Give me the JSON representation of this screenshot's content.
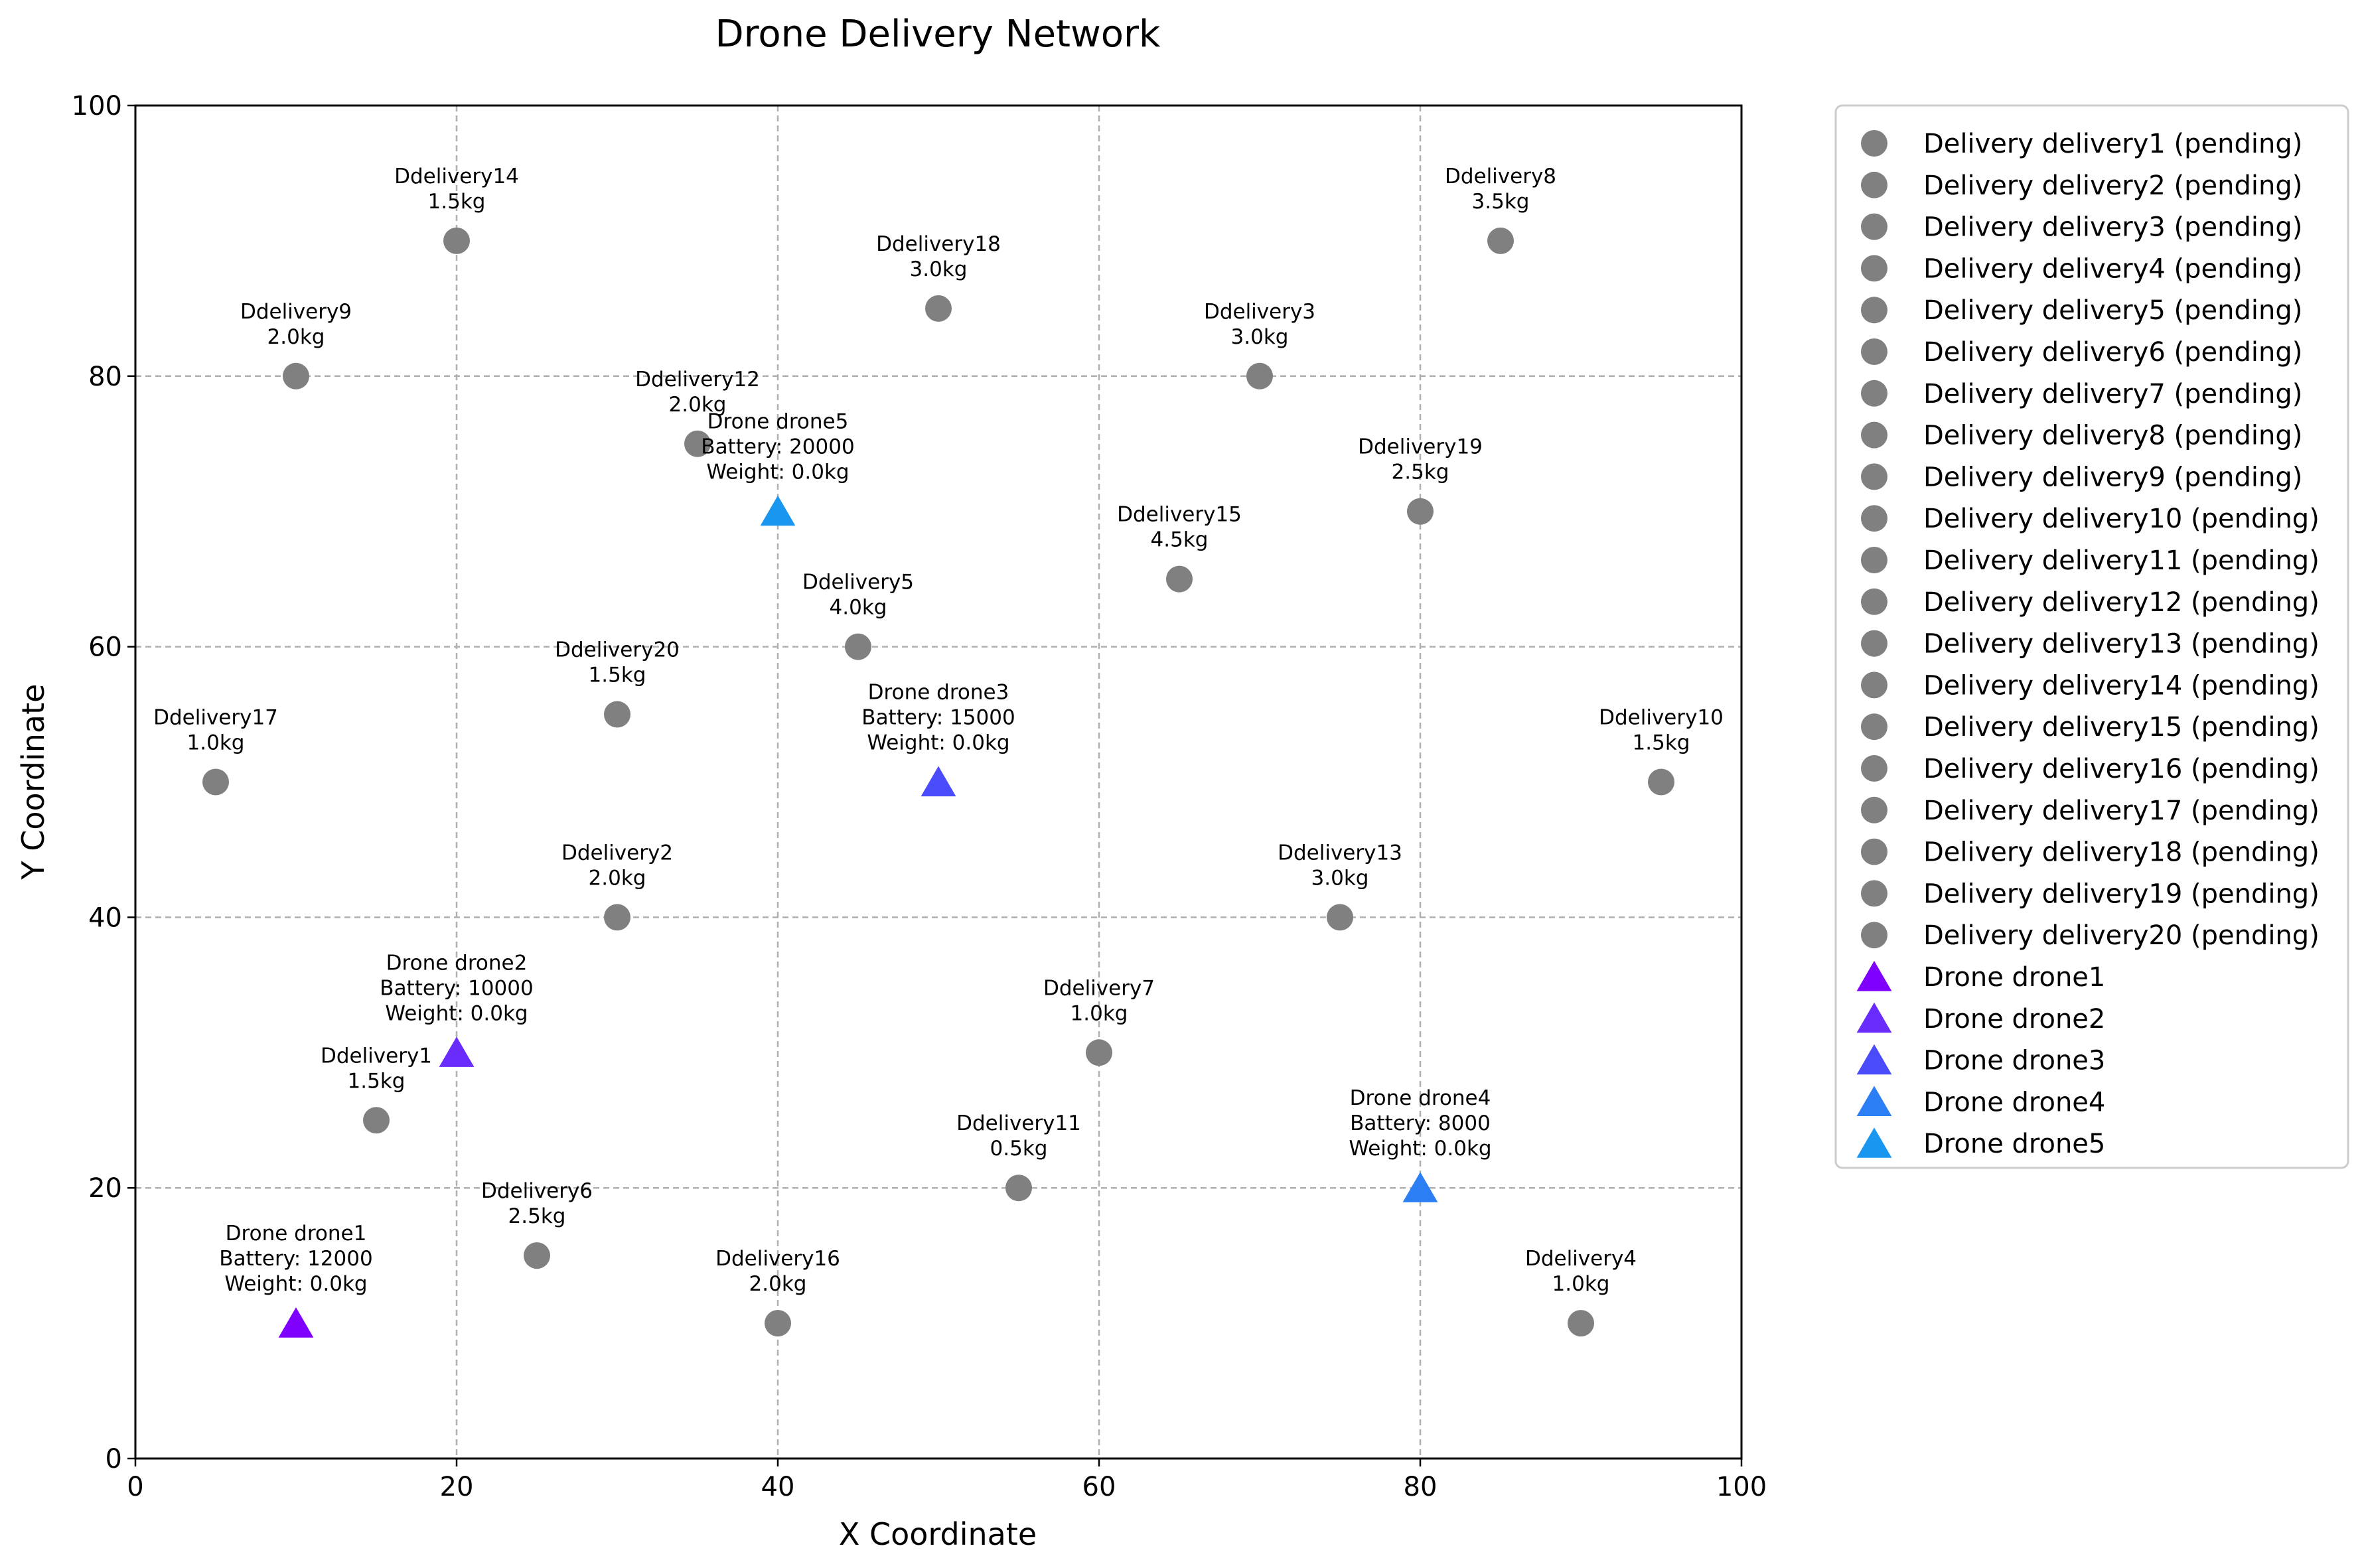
{
  "chart_data": {
    "type": "scatter",
    "title": "Drone Delivery Network",
    "xlabel": "X Coordinate",
    "ylabel": "Y Coordinate",
    "xlim": [
      0,
      100
    ],
    "ylim": [
      0,
      100
    ],
    "xticks": [
      "0",
      "20",
      "40",
      "60",
      "80",
      "100"
    ],
    "yticks": [
      "0",
      "20",
      "40",
      "60",
      "80",
      "100"
    ],
    "grid": true,
    "legend_position": "outside-right",
    "delivery_color": "#808080",
    "deliveries": [
      {
        "x": 15,
        "y": 25,
        "label_line1": "Ddelivery1",
        "label_line2": "1.5kg",
        "legend": "Delivery delivery1 (pending)"
      },
      {
        "x": 30,
        "y": 40,
        "label_line1": "Ddelivery2",
        "label_line2": "2.0kg",
        "legend": "Delivery delivery2 (pending)"
      },
      {
        "x": 70,
        "y": 80,
        "label_line1": "Ddelivery3",
        "label_line2": "3.0kg",
        "legend": "Delivery delivery3 (pending)"
      },
      {
        "x": 90,
        "y": 10,
        "label_line1": "Ddelivery4",
        "label_line2": "1.0kg",
        "legend": "Delivery delivery4 (pending)"
      },
      {
        "x": 45,
        "y": 60,
        "label_line1": "Ddelivery5",
        "label_line2": "4.0kg",
        "legend": "Delivery delivery5 (pending)"
      },
      {
        "x": 25,
        "y": 15,
        "label_line1": "Ddelivery6",
        "label_line2": "2.5kg",
        "legend": "Delivery delivery6 (pending)"
      },
      {
        "x": 60,
        "y": 30,
        "label_line1": "Ddelivery7",
        "label_line2": "1.0kg",
        "legend": "Delivery delivery7 (pending)"
      },
      {
        "x": 85,
        "y": 90,
        "label_line1": "Ddelivery8",
        "label_line2": "3.5kg",
        "legend": "Delivery delivery8 (pending)"
      },
      {
        "x": 10,
        "y": 80,
        "label_line1": "Ddelivery9",
        "label_line2": "2.0kg",
        "legend": "Delivery delivery9 (pending)"
      },
      {
        "x": 95,
        "y": 50,
        "label_line1": "Ddelivery10",
        "label_line2": "1.5kg",
        "legend": "Delivery delivery10 (pending)"
      },
      {
        "x": 55,
        "y": 20,
        "label_line1": "Ddelivery11",
        "label_line2": "0.5kg",
        "legend": "Delivery delivery11 (pending)"
      },
      {
        "x": 35,
        "y": 75,
        "label_line1": "Ddelivery12",
        "label_line2": "2.0kg",
        "legend": "Delivery delivery12 (pending)"
      },
      {
        "x": 75,
        "y": 40,
        "label_line1": "Ddelivery13",
        "label_line2": "3.0kg",
        "legend": "Delivery delivery13 (pending)"
      },
      {
        "x": 20,
        "y": 90,
        "label_line1": "Ddelivery14",
        "label_line2": "1.5kg",
        "legend": "Delivery delivery14 (pending)"
      },
      {
        "x": 65,
        "y": 65,
        "label_line1": "Ddelivery15",
        "label_line2": "4.5kg",
        "legend": "Delivery delivery15 (pending)"
      },
      {
        "x": 40,
        "y": 10,
        "label_line1": "Ddelivery16",
        "label_line2": "2.0kg",
        "legend": "Delivery delivery16 (pending)"
      },
      {
        "x": 5,
        "y": 50,
        "label_line1": "Ddelivery17",
        "label_line2": "1.0kg",
        "legend": "Delivery delivery17 (pending)"
      },
      {
        "x": 50,
        "y": 85,
        "label_line1": "Ddelivery18",
        "label_line2": "3.0kg",
        "legend": "Delivery delivery18 (pending)"
      },
      {
        "x": 80,
        "y": 70,
        "label_line1": "Ddelivery19",
        "label_line2": "2.5kg",
        "legend": "Delivery delivery19 (pending)"
      },
      {
        "x": 30,
        "y": 55,
        "label_line1": "Ddelivery20",
        "label_line2": "1.5kg",
        "legend": "Delivery delivery20 (pending)"
      }
    ],
    "drones": [
      {
        "x": 10,
        "y": 10,
        "color": "#7f00ff",
        "label_line1": "Drone drone1",
        "label_line2": "Battery: 12000",
        "label_line3": "Weight: 0.0kg",
        "legend": "Drone drone1"
      },
      {
        "x": 20,
        "y": 30,
        "color": "#6a2bfd",
        "label_line1": "Drone drone2",
        "label_line2": "Battery: 10000",
        "label_line3": "Weight: 0.0kg",
        "legend": "Drone drone2"
      },
      {
        "x": 50,
        "y": 50,
        "color": "#4a4cfb",
        "label_line1": "Drone drone3",
        "label_line2": "Battery: 15000",
        "label_line3": "Weight: 0.0kg",
        "legend": "Drone drone3"
      },
      {
        "x": 80,
        "y": 20,
        "color": "#2c7ef4",
        "label_line1": "Drone drone4",
        "label_line2": "Battery: 8000",
        "label_line3": "Weight: 0.0kg",
        "legend": "Drone drone4"
      },
      {
        "x": 40,
        "y": 70,
        "color": "#1996f0",
        "label_line1": "Drone drone5",
        "label_line2": "Battery: 20000",
        "label_line3": "Weight: 0.0kg",
        "legend": "Drone drone5"
      }
    ]
  }
}
